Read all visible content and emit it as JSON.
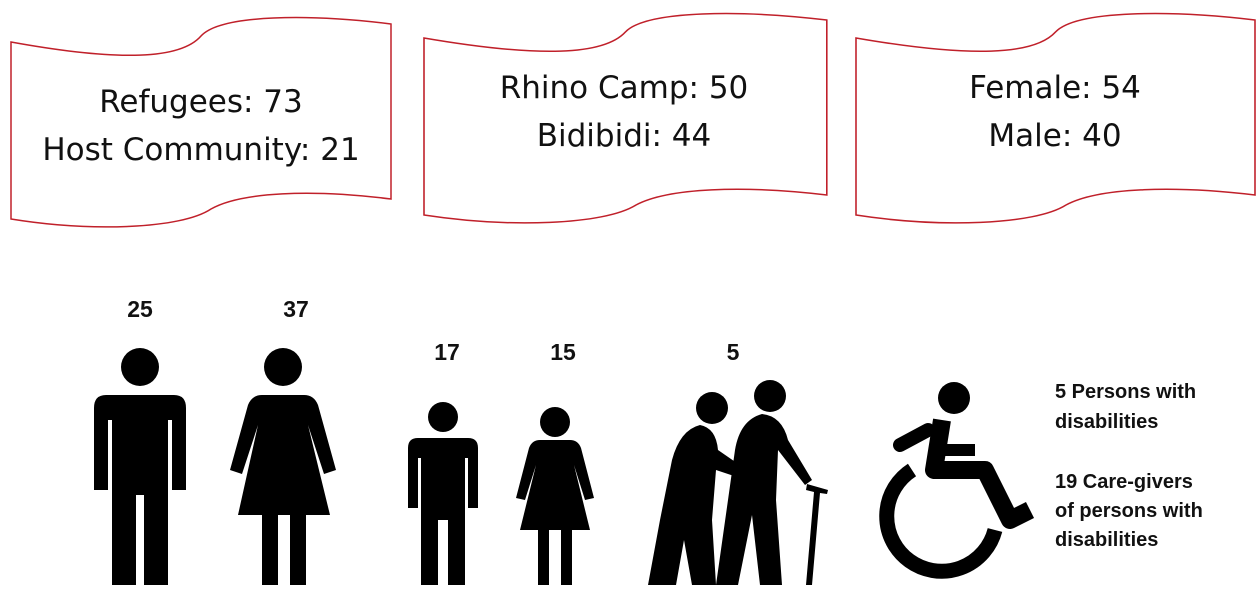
{
  "banners": [
    {
      "lines": [
        "Refugees: 73",
        "Host Community: 21"
      ]
    },
    {
      "lines": [
        "Rhino Camp: 50",
        "Bidibidi: 44"
      ]
    },
    {
      "lines": [
        "Female: 54",
        "Male: 40"
      ]
    }
  ],
  "figures": {
    "labels": [
      "25",
      "37",
      "17",
      "15",
      "5"
    ]
  },
  "notes": [
    {
      "lines": [
        "5 Persons with",
        "disabilities"
      ]
    },
    {
      "lines": [
        "19 Care-givers",
        "of persons with",
        "disabilities"
      ]
    }
  ]
}
